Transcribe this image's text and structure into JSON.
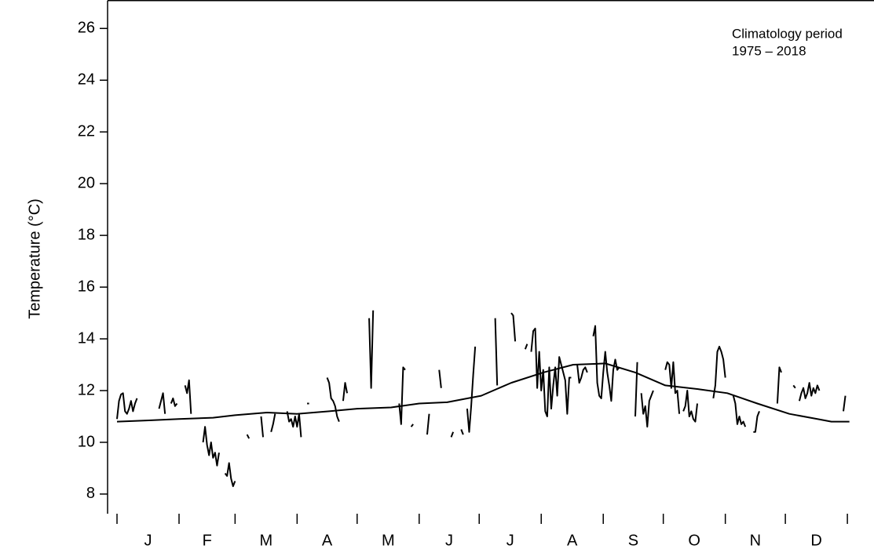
{
  "chart_data": {
    "type": "line",
    "y_label": "Temperature (°C)",
    "annotation": [
      "Climatology period",
      "1975 – 2018"
    ],
    "xlim": [
      -3.71,
      379.3
    ],
    "ylim": [
      7.24,
      27.1
    ],
    "yticks": [
      8,
      10,
      12,
      14,
      16,
      18,
      20,
      22,
      24,
      26
    ],
    "xticks": [
      1,
      32,
      60,
      91,
      121,
      152,
      182,
      213,
      244,
      274,
      305,
      335,
      366
    ],
    "month_labels": [
      {
        "value": 16.5,
        "label": "J"
      },
      {
        "value": 46,
        "label": "F"
      },
      {
        "value": 75.5,
        "label": "M"
      },
      {
        "value": 106,
        "label": "A"
      },
      {
        "value": 136.5,
        "label": "M"
      },
      {
        "value": 167,
        "label": "J"
      },
      {
        "value": 197.5,
        "label": "J"
      },
      {
        "value": 228.5,
        "label": "A"
      },
      {
        "value": 259,
        "label": "S"
      },
      {
        "value": 289.5,
        "label": "O"
      },
      {
        "value": 320,
        "label": "N"
      },
      {
        "value": 350.5,
        "label": "D"
      }
    ],
    "series": [
      {
        "color": "#000000",
        "x": [
          1,
          2,
          3,
          4,
          5,
          6,
          7,
          8,
          9,
          10,
          11,
          12,
          22,
          23,
          24,
          25,
          26,
          28,
          29,
          30,
          31,
          32,
          35,
          36,
          37,
          38,
          39,
          44,
          45,
          46,
          47,
          48,
          49,
          50,
          51,
          52,
          53,
          55,
          56,
          57,
          58,
          59,
          60,
          61,
          66,
          67,
          68,
          73,
          74,
          75,
          78,
          79,
          80,
          81,
          86,
          87,
          88,
          89,
          90,
          91,
          92,
          93,
          94,
          96,
          97,
          98,
          106,
          107,
          108,
          109,
          110,
          111,
          112,
          113,
          114,
          115,
          116,
          117,
          127,
          128,
          129,
          130,
          142,
          143,
          144,
          145,
          146,
          148,
          149,
          150,
          156,
          157,
          158,
          162,
          163,
          164,
          168,
          169,
          170,
          173,
          174,
          175,
          176,
          177,
          178,
          179,
          180,
          181,
          190,
          191,
          192,
          198,
          199,
          200,
          201,
          205,
          206,
          207,
          208,
          209,
          210,
          211,
          212,
          213,
          214,
          215,
          216,
          217,
          218,
          219,
          220,
          221,
          222,
          223,
          224,
          225,
          226,
          227,
          228,
          229,
          231,
          232,
          233,
          234,
          235,
          236,
          237,
          239,
          240,
          241,
          242,
          243,
          244,
          245,
          246,
          247,
          248,
          249,
          250,
          251,
          252,
          253,
          260,
          261,
          262,
          263,
          264,
          265,
          266,
          267,
          268,
          269,
          270,
          275,
          276,
          277,
          278,
          279,
          280,
          281,
          282,
          283,
          284,
          285,
          286,
          287,
          288,
          289,
          290,
          291,
          292,
          299,
          300,
          301,
          302,
          303,
          304,
          305,
          306,
          309,
          310,
          311,
          312,
          313,
          314,
          315,
          316,
          319,
          320,
          321,
          322,
          323,
          331,
          332,
          333,
          334,
          339,
          340,
          341,
          342,
          343,
          344,
          345,
          346,
          347,
          348,
          349,
          350,
          351,
          352,
          353,
          364,
          365
        ],
        "values": [
          10.9,
          11.6,
          11.85,
          11.9,
          11.2,
          11.1,
          11.3,
          11.6,
          11.2,
          11.5,
          11.7,
          null,
          11.3,
          11.6,
          11.9,
          11.1,
          null,
          11.5,
          11.7,
          11.4,
          11.5,
          null,
          12.2,
          11.9,
          12.4,
          11.1,
          null,
          10.0,
          10.6,
          9.9,
          9.5,
          10.0,
          9.4,
          9.6,
          9.1,
          9.6,
          null,
          8.8,
          8.7,
          9.2,
          8.6,
          8.3,
          8.5,
          null,
          10.3,
          10.15,
          null,
          11.0,
          10.2,
          null,
          10.4,
          10.7,
          11.1,
          null,
          11.2,
          10.8,
          10.9,
          10.6,
          11.0,
          10.6,
          11.1,
          10.2,
          null,
          11.5,
          11.5,
          null,
          12.5,
          12.3,
          11.7,
          11.6,
          11.4,
          11.0,
          10.8,
          null,
          11.6,
          12.3,
          11.9,
          null,
          14.8,
          12.1,
          15.1,
          null,
          11.5,
          10.7,
          12.9,
          12.8,
          null,
          10.6,
          10.7,
          null,
          10.3,
          11.1,
          null,
          12.8,
          12.1,
          null,
          10.2,
          10.4,
          null,
          10.5,
          10.3,
          null,
          11.3,
          10.4,
          11.4,
          12.6,
          13.7,
          null,
          14.8,
          12.2,
          null,
          15.0,
          14.9,
          13.9,
          null,
          13.6,
          13.8,
          null,
          13.5,
          14.3,
          14.4,
          12.1,
          13.5,
          12.0,
          12.8,
          11.2,
          11.0,
          12.9,
          11.3,
          12.2,
          12.9,
          11.8,
          13.3,
          13.0,
          12.7,
          12.4,
          11.1,
          12.5,
          12.5,
          null,
          13.0,
          12.3,
          12.5,
          12.8,
          12.9,
          12.7,
          null,
          14.1,
          14.5,
          12.3,
          11.8,
          11.7,
          12.7,
          13.5,
          12.7,
          12.2,
          11.6,
          12.8,
          13.2,
          12.8,
          12.9,
          null,
          11.0,
          13.1,
          null,
          11.9,
          11.1,
          11.4,
          10.6,
          11.6,
          11.8,
          12.0,
          null,
          12.8,
          13.1,
          13.0,
          12.1,
          13.1,
          11.9,
          12.0,
          11.1,
          null,
          11.2,
          11.4,
          12.0,
          11.0,
          11.2,
          10.9,
          10.8,
          11.5,
          null,
          11.7,
          12.2,
          13.5,
          13.7,
          13.5,
          13.2,
          12.5,
          null,
          11.8,
          11.5,
          10.7,
          11.0,
          10.7,
          10.8,
          10.6,
          null,
          10.4,
          10.4,
          11.0,
          11.2,
          null,
          11.5,
          12.9,
          12.7,
          null,
          12.2,
          12.1,
          null,
          11.6,
          11.9,
          12.1,
          11.7,
          11.9,
          12.3,
          11.8,
          12.1,
          11.9,
          12.2,
          12.0,
          null,
          11.2,
          11.8
        ]
      },
      {
        "color": "#000000",
        "x": [
          1,
          17,
          32,
          49,
          60,
          76,
          91,
          107,
          121,
          138,
          152,
          166,
          183,
          198,
          214,
          229,
          245,
          260,
          275,
          292,
          306,
          321,
          337,
          351,
          358,
          367
        ],
        "values": [
          10.8,
          10.85,
          10.9,
          10.95,
          11.05,
          11.15,
          11.1,
          11.2,
          11.3,
          11.35,
          11.5,
          11.55,
          11.8,
          12.3,
          12.7,
          13.0,
          13.05,
          12.7,
          12.2,
          12.05,
          11.9,
          11.5,
          11.1,
          10.9,
          10.8,
          10.8
        ]
      }
    ]
  }
}
